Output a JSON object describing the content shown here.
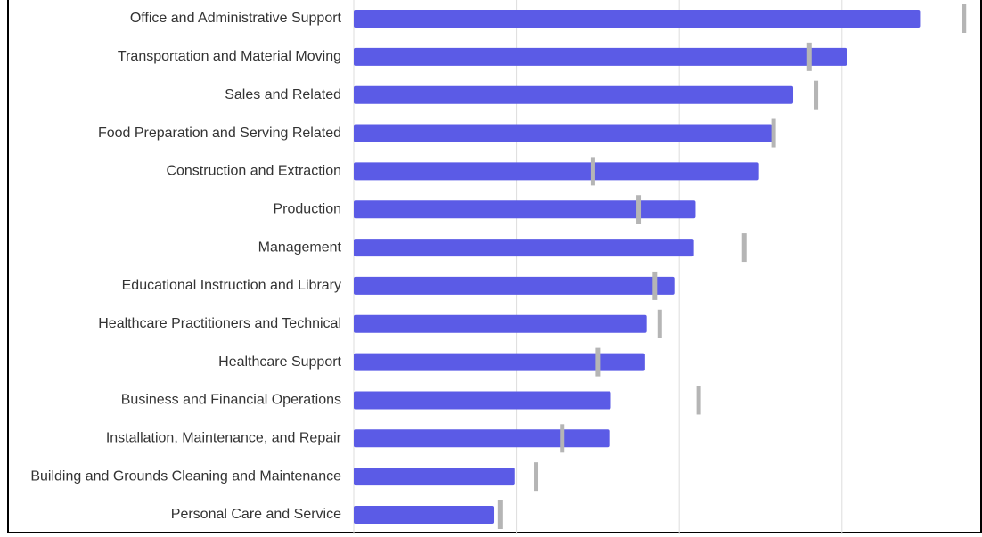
{
  "chart_data": {
    "type": "bullet",
    "categories": [
      "Office and Administrative Support",
      "Transportation and Material Moving",
      "Sales and Related",
      "Food Preparation and Serving Related",
      "Construction and Extraction",
      "Production",
      "Management",
      "Educational Instruction and Library",
      "Healthcare Practitioners and Technical",
      "Healthcare Support",
      "Business and Financial Operations",
      "Installation, Maintenance, and Repair",
      "Building and Grounds Cleaning and Maintenance",
      "Personal Care and Service"
    ],
    "series": [
      {
        "color": "#5b5be6",
        "values": [
          348,
          303,
          270,
          257,
          249,
          210,
          209,
          197,
          180,
          179,
          158,
          157,
          99,
          86
        ]
      },
      {
        "color": "#b5b5b5",
        "values": [
          375,
          280,
          284,
          258,
          147,
          175,
          240,
          185,
          188,
          150,
          212,
          128,
          112,
          90
        ]
      }
    ],
    "xlim": [
      0,
      385
    ],
    "xticks": [
      0,
      100,
      200,
      300
    ],
    "grid": true
  }
}
